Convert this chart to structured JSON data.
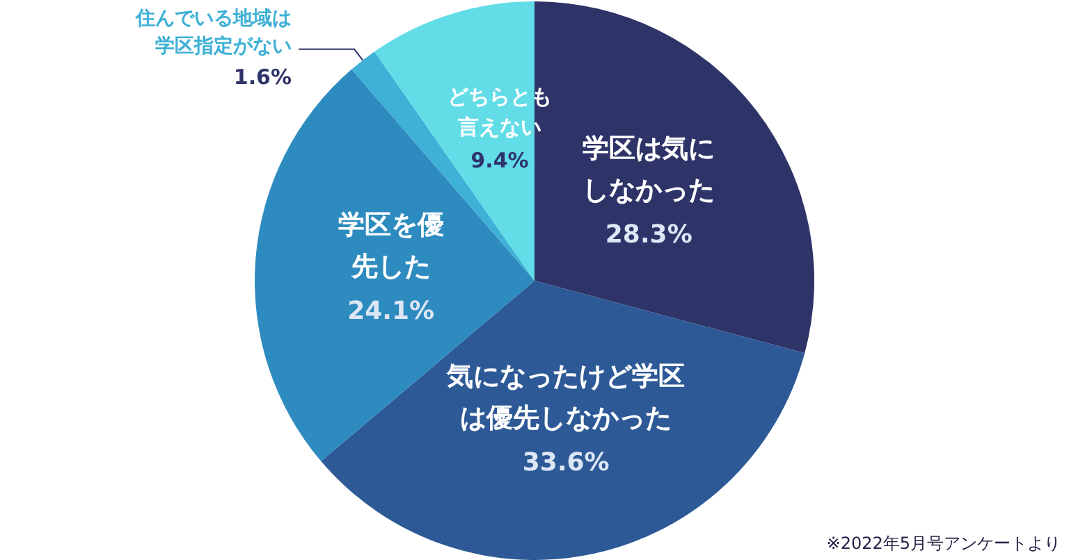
{
  "chart_data": {
    "type": "pie",
    "categories": [
      "学区は気にしなかった",
      "気になったけど学区は優先しなかった",
      "学区を優先した",
      "住んでいる地域は学区指定がない",
      "どちらとも言えない"
    ],
    "values": [
      28.3,
      33.6,
      24.1,
      1.6,
      9.4
    ],
    "value_labels": [
      "28.3%",
      "33.6%",
      "24.1%",
      "1.6%",
      "9.4%"
    ],
    "colors": [
      "#2e3368",
      "#2d5a96",
      "#2e8bbf",
      "#3fb0d6",
      "#62dde8"
    ],
    "legend": false,
    "annotations": [
      "※2022年5月号アンケートより"
    ]
  }
}
